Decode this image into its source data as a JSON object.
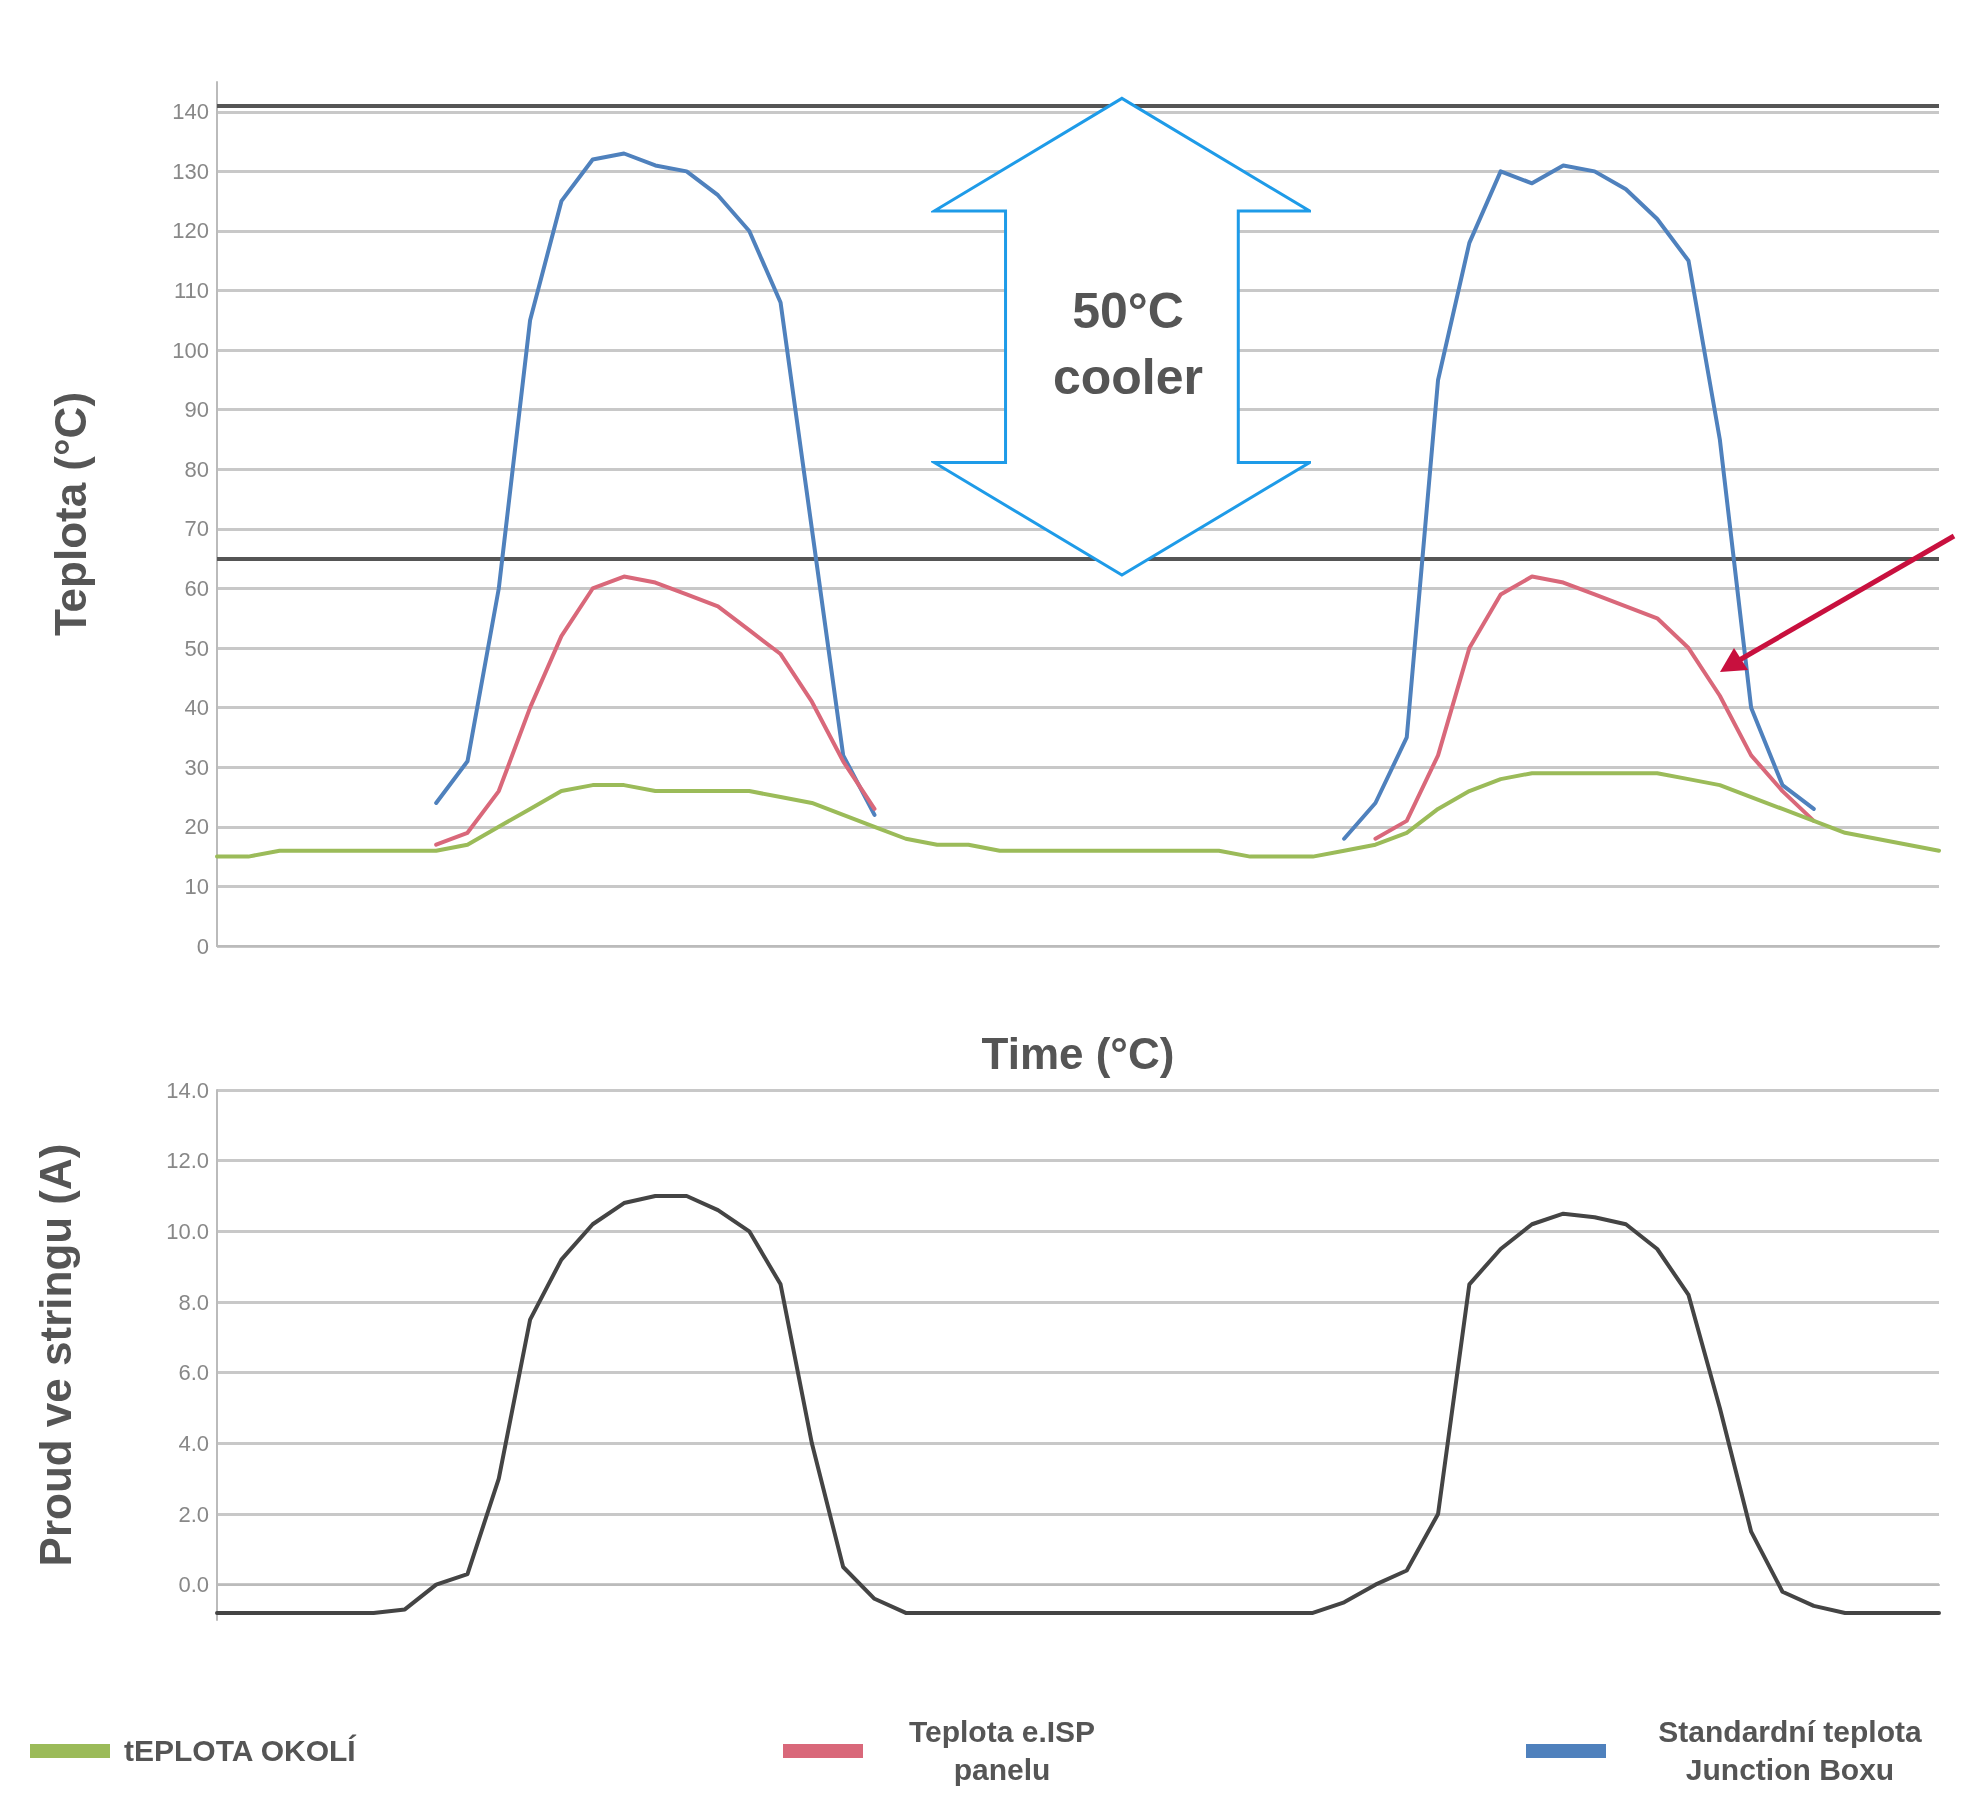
{
  "chart_data": [
    {
      "type": "line",
      "xlabel": "Time (°C)",
      "ylabel": "Teplota (°C)",
      "ylim": [
        0,
        145
      ],
      "yticks": [
        0,
        10,
        20,
        30,
        40,
        50,
        60,
        70,
        80,
        90,
        100,
        110,
        120,
        130,
        140
      ],
      "grid": "y",
      "legend": "bottom",
      "tick_labels": "y",
      "categories": [
        null,
        null,
        null,
        null,
        null,
        null,
        null,
        null,
        null,
        null,
        null,
        null,
        null,
        null,
        null,
        null,
        null,
        null,
        null,
        null,
        null,
        null,
        null,
        null,
        null,
        null,
        null,
        null,
        null,
        null,
        null,
        null,
        null,
        null,
        null,
        null,
        null,
        null,
        null,
        null,
        null,
        null,
        null,
        null,
        null,
        null,
        null,
        null,
        null,
        null,
        null,
        null,
        null,
        null,
        null,
        null
      ],
      "series": [
        {
          "name": "tEPLOTA OKOLÍ",
          "color": "#9bbb59",
          "values": [
            15,
            15,
            16,
            16,
            16,
            16,
            16,
            16,
            17,
            20,
            23,
            26,
            27,
            27,
            26,
            26,
            26,
            26,
            25,
            24,
            22,
            20,
            18,
            17,
            17,
            16,
            16,
            16,
            16,
            16,
            16,
            16,
            16,
            15,
            15,
            15,
            16,
            17,
            19,
            23,
            26,
            28,
            29,
            29,
            29,
            29,
            29,
            28,
            27,
            25,
            23,
            21,
            19,
            18,
            17,
            16
          ]
        },
        {
          "name": "Teplota e.ISP panelu",
          "color": "#d9687a",
          "values": [
            null,
            null,
            null,
            null,
            null,
            null,
            null,
            17,
            19,
            26,
            40,
            52,
            60,
            62,
            61,
            59,
            57,
            53,
            49,
            41,
            31,
            23,
            null,
            null,
            null,
            null,
            null,
            null,
            null,
            null,
            null,
            null,
            null,
            null,
            null,
            null,
            null,
            18,
            21,
            32,
            50,
            59,
            62,
            61,
            59,
            57,
            55,
            50,
            42,
            32,
            26,
            21,
            null,
            null,
            null,
            null
          ]
        },
        {
          "name": "Standardní teplota Junction Boxu",
          "color": "#4f81bd",
          "values": [
            null,
            null,
            null,
            null,
            null,
            null,
            null,
            24,
            31,
            60,
            105,
            125,
            132,
            133,
            131,
            130,
            126,
            120,
            108,
            70,
            32,
            22,
            null,
            null,
            null,
            null,
            null,
            null,
            null,
            null,
            null,
            null,
            null,
            null,
            null,
            null,
            18,
            24,
            35,
            95,
            118,
            130,
            128,
            131,
            130,
            127,
            122,
            115,
            85,
            40,
            27,
            23,
            null,
            null,
            null,
            null
          ]
        }
      ],
      "ref_lines": [
        {
          "axis": "y",
          "value": 141,
          "color": "#555555"
        },
        {
          "axis": "y",
          "value": 65,
          "color": "#555555"
        }
      ],
      "annotations": [
        "50°C cooler"
      ]
    },
    {
      "type": "line",
      "ylabel": "Proud ve stringu (A)",
      "ylim": [
        -1,
        14
      ],
      "yticks": [
        {
          "value": 0,
          "label": "0.0"
        },
        {
          "value": 2,
          "label": "2.0"
        },
        {
          "value": 4,
          "label": "4.0"
        },
        {
          "value": 6,
          "label": "6.0"
        },
        {
          "value": 8,
          "label": "8.0"
        },
        {
          "value": 10,
          "label": "10.0"
        },
        {
          "value": 12,
          "label": "12.0"
        },
        {
          "value": 14,
          "label": "14.0"
        }
      ],
      "grid": "y",
      "tick_labels": "y",
      "categories": [
        null,
        null,
        null,
        null,
        null,
        null,
        null,
        null,
        null,
        null,
        null,
        null,
        null,
        null,
        null,
        null,
        null,
        null,
        null,
        null,
        null,
        null,
        null,
        null,
        null,
        null,
        null,
        null,
        null,
        null,
        null,
        null,
        null,
        null,
        null,
        null,
        null,
        null,
        null,
        null,
        null,
        null,
        null,
        null,
        null,
        null,
        null,
        null,
        null,
        null,
        null,
        null,
        null,
        null,
        null,
        null
      ],
      "series": [
        {
          "color": "#444444",
          "values": [
            -0.8,
            -0.8,
            -0.8,
            -0.8,
            -0.8,
            -0.8,
            -0.7,
            0,
            0.3,
            3,
            7.5,
            9.2,
            10.2,
            10.8,
            11,
            11,
            10.6,
            10,
            8.5,
            4,
            0.5,
            -0.4,
            -0.8,
            -0.8,
            -0.8,
            -0.8,
            -0.8,
            -0.8,
            -0.8,
            -0.8,
            -0.8,
            -0.8,
            -0.8,
            -0.8,
            -0.8,
            -0.8,
            -0.5,
            0,
            0.4,
            2,
            8.5,
            9.5,
            10.2,
            10.5,
            10.4,
            10.2,
            9.5,
            8.2,
            5,
            1.5,
            -0.2,
            -0.6,
            -0.8,
            -0.8,
            -0.8,
            -0.8
          ]
        }
      ]
    }
  ]
}
